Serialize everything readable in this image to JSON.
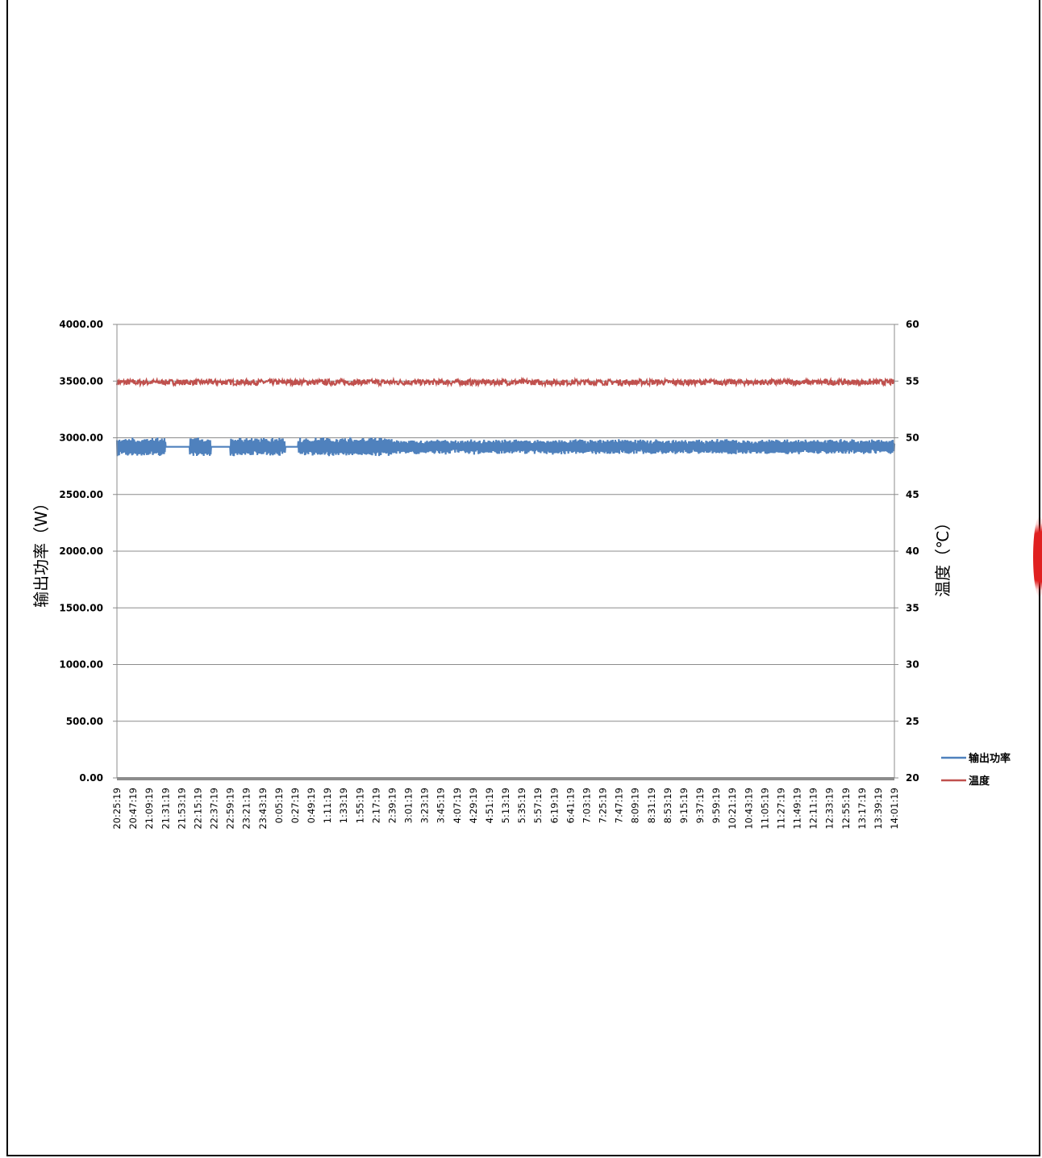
{
  "chart_data": {
    "type": "line",
    "title": "",
    "xlabel": "",
    "ylabel": "输出功率（W）",
    "y2label": "温度（℃）",
    "ylim": [
      0,
      4000
    ],
    "y2lim": [
      20,
      60
    ],
    "yticks": [
      "0.00",
      "500.00",
      "1000.00",
      "1500.00",
      "2000.00",
      "2500.00",
      "3000.00",
      "3500.00",
      "4000.00"
    ],
    "y2ticks": [
      "20",
      "25",
      "30",
      "35",
      "40",
      "45",
      "50",
      "55",
      "60"
    ],
    "categories": [
      "20:25:19",
      "20:47:19",
      "21:09:19",
      "21:31:19",
      "21:53:19",
      "22:15:19",
      "22:37:19",
      "22:59:19",
      "23:21:19",
      "23:43:19",
      "0:05:19",
      "0:27:19",
      "0:49:19",
      "1:11:19",
      "1:33:19",
      "1:55:19",
      "2:17:19",
      "2:39:19",
      "3:01:19",
      "3:23:19",
      "3:45:19",
      "4:07:19",
      "4:29:19",
      "4:51:19",
      "5:13:19",
      "5:35:19",
      "5:57:19",
      "6:19:19",
      "6:41:19",
      "7:03:19",
      "7:25:19",
      "7:47:19",
      "8:09:19",
      "8:31:19",
      "8:53:19",
      "9:15:19",
      "9:37:19",
      "9:59:19",
      "10:21:19",
      "10:43:19",
      "11:05:19",
      "11:27:19",
      "11:49:19",
      "12:11:19",
      "12:33:19",
      "12:55:19",
      "13:17:19",
      "13:39:19",
      "14:01:19"
    ],
    "grid": true,
    "legend_position": "right-bottom",
    "series": [
      {
        "name": "输出功率",
        "axis": "left",
        "color": "#4f81bd",
        "center": 2920,
        "amplitude": 70,
        "flat_segments": [
          [
            3,
            4.5,
            2920
          ],
          [
            5.8,
            7,
            2920
          ],
          [
            10.4,
            11.2,
            2920
          ]
        ]
      },
      {
        "name": "温度",
        "axis": "right",
        "color": "#c0504d",
        "center": 54.9,
        "amplitude": 0.25
      }
    ]
  }
}
